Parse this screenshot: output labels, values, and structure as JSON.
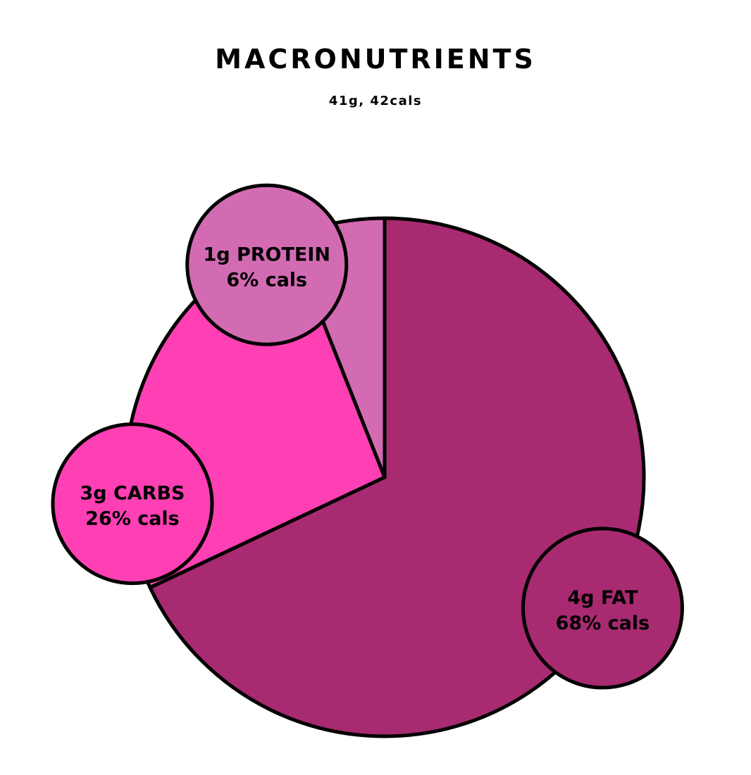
{
  "chart_data": {
    "type": "pie",
    "title": "MACRONUTRIENTS",
    "subtitle": "41g, 42cals",
    "slices": [
      {
        "name": "FAT",
        "grams": 4,
        "percent_cals": 68,
        "label_line1": "4g FAT",
        "label_line2": "68% cals",
        "color": "#A82A70"
      },
      {
        "name": "CARBS",
        "grams": 3,
        "percent_cals": 26,
        "label_line1": "3g CARBS",
        "label_line2": "26% cals",
        "color": "#FF40B4"
      },
      {
        "name": "PROTEIN",
        "grams": 1,
        "percent_cals": 6,
        "label_line1": "1g PROTEIN",
        "label_line2": "6% cals",
        "color": "#D36BB3"
      }
    ],
    "start": "top",
    "direction": "clockwise",
    "stroke_color": "#000000"
  }
}
